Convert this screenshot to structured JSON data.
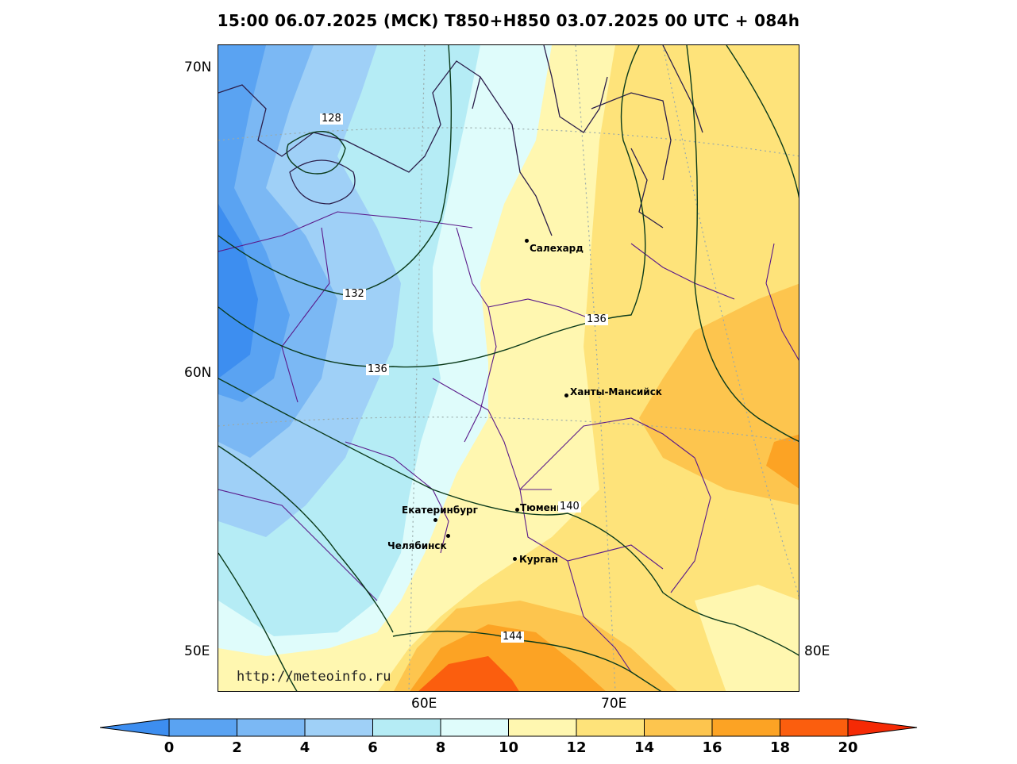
{
  "title": "15:00 06.07.2025 (MCK) T850+H850 03.07.2025 00 UTC + 084h",
  "lat_labels": [
    "70N",
    "60N",
    "50E"
  ],
  "lon_labels": [
    "60E",
    "70E",
    "80E"
  ],
  "cities": [
    {
      "name": "Салехард"
    },
    {
      "name": "Ханты-Мансийск"
    },
    {
      "name": "Екатеринбург"
    },
    {
      "name": "Тюмень"
    },
    {
      "name": "Челябинск"
    },
    {
      "name": "Курган"
    }
  ],
  "contour_labels": [
    "128",
    "132",
    "136",
    "136",
    "140",
    "144"
  ],
  "watermark": "http://meteoinfo.ru",
  "colorbar": {
    "ticks": [
      "0",
      "2",
      "4",
      "6",
      "8",
      "10",
      "12",
      "14",
      "16",
      "18",
      "20"
    ],
    "colors": [
      "#3d8ef0",
      "#5aa3f2",
      "#7bb8f4",
      "#9fd0f7",
      "#b5ecf5",
      "#dffcfb",
      "#fff7b0",
      "#fee37a",
      "#fdc54e",
      "#fca324",
      "#fb5e0e",
      "#f52a05"
    ]
  }
}
